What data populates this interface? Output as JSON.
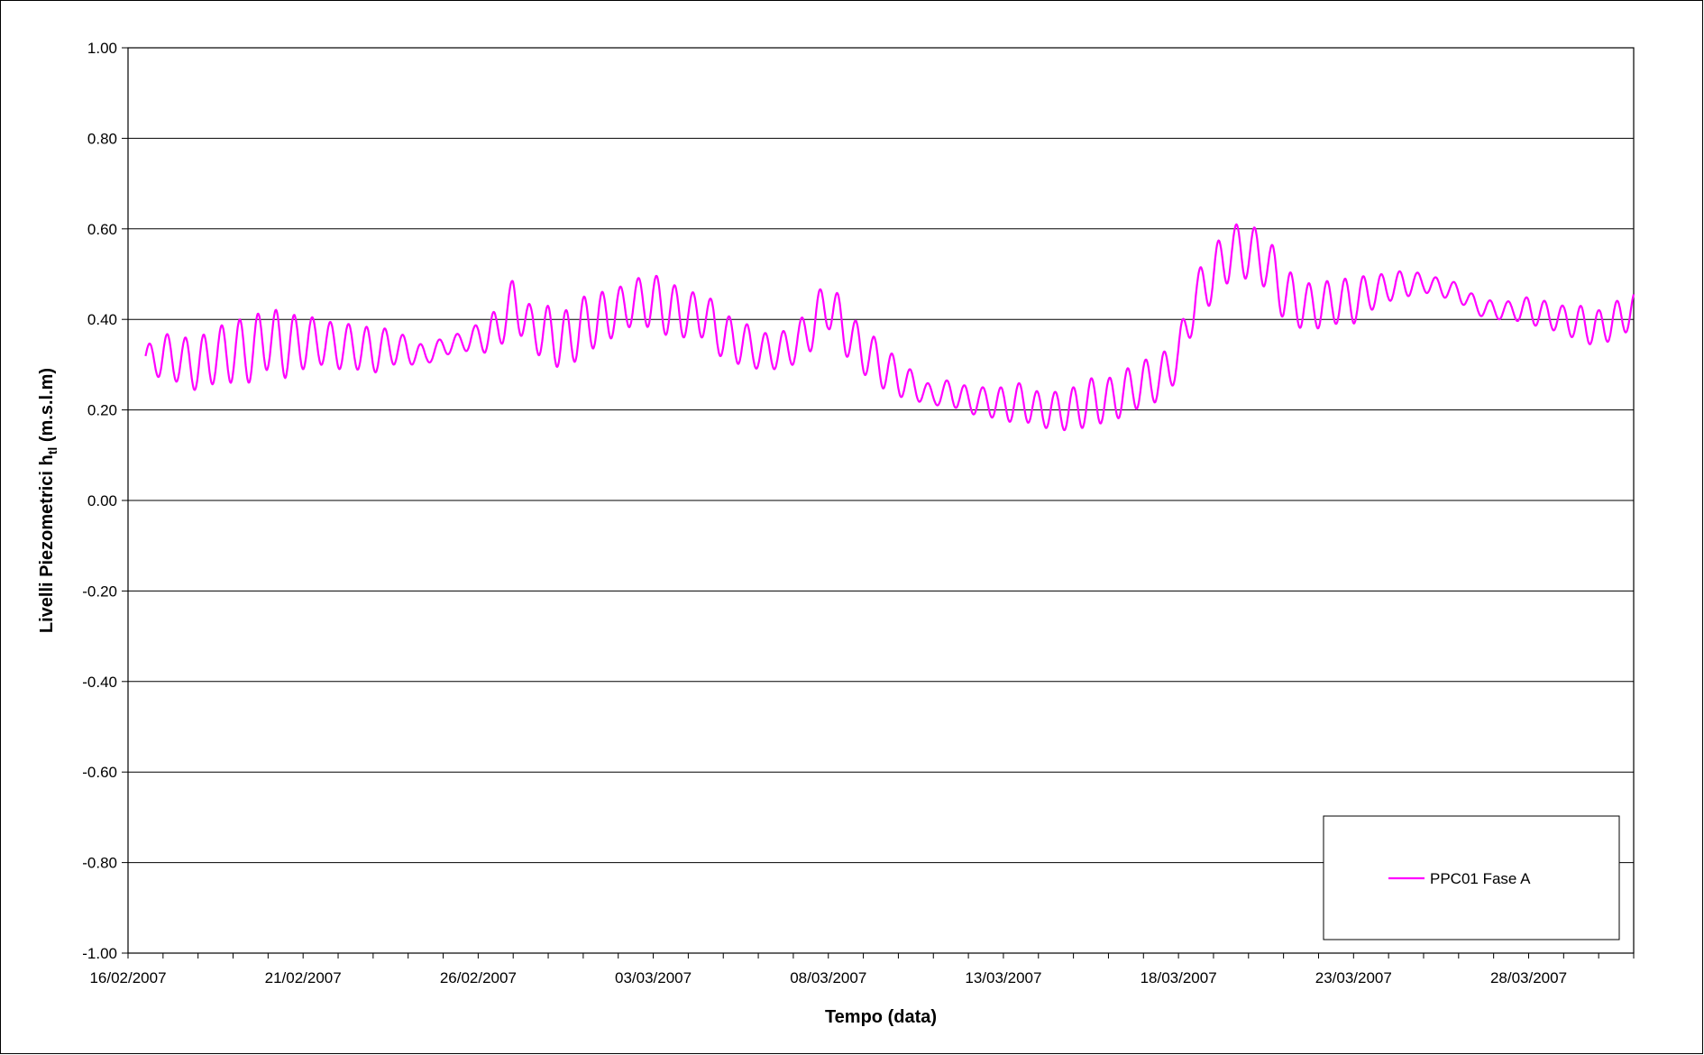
{
  "chart_data": {
    "type": "line",
    "title": "",
    "xlabel": "Tempo (data)",
    "ylabel_main": "Livelli Piezometrici h",
    "ylabel_sub": "tl",
    "ylabel_unit": " (m.s.l.m)",
    "x_tick_labels": [
      "16/02/2007",
      "21/02/2007",
      "26/02/2007",
      "03/03/2007",
      "08/03/2007",
      "13/03/2007",
      "18/03/2007",
      "23/03/2007",
      "28/03/2007"
    ],
    "x_range": [
      "16/02/2007",
      "31/03/2007"
    ],
    "y_tick_labels": [
      "1.00",
      "0.80",
      "0.60",
      "0.40",
      "0.20",
      "0.00",
      "-0.20",
      "-0.40",
      "-0.60",
      "-0.80",
      "-1.00"
    ],
    "ylim": [
      -1.0,
      1.0
    ],
    "grid": "horizontal",
    "legend_position": "bottom-right",
    "series": [
      {
        "name": "PPC01 Fase A",
        "color": "#ff00ff",
        "x": [
          "16/02/2007 12:00",
          "17/02/2007 00:00",
          "17/02/2007 12:00",
          "18/02/2007 00:00",
          "18/02/2007 12:00",
          "19/02/2007 00:00",
          "19/02/2007 12:00",
          "20/02/2007 00:00",
          "20/02/2007 12:00",
          "21/02/2007 00:00",
          "21/02/2007 12:00",
          "22/02/2007 00:00",
          "22/02/2007 12:00",
          "23/02/2007 00:00",
          "23/02/2007 12:00",
          "24/02/2007 00:00",
          "24/02/2007 12:00",
          "25/02/2007 00:00",
          "25/02/2007 12:00",
          "26/02/2007 00:00",
          "26/02/2007 12:00",
          "27/02/2007 00:00",
          "27/02/2007 12:00",
          "28/02/2007 00:00",
          "28/02/2007 12:00",
          "01/03/2007 00:00",
          "01/03/2007 12:00",
          "02/03/2007 00:00",
          "02/03/2007 12:00",
          "03/03/2007 00:00",
          "03/03/2007 12:00",
          "04/03/2007 00:00",
          "04/03/2007 12:00",
          "05/03/2007 00:00",
          "05/03/2007 12:00",
          "06/03/2007 00:00",
          "06/03/2007 12:00",
          "07/03/2007 00:00",
          "07/03/2007 12:00",
          "08/03/2007 00:00",
          "08/03/2007 12:00",
          "09/03/2007 00:00",
          "09/03/2007 12:00",
          "10/03/2007 00:00",
          "10/03/2007 12:00",
          "11/03/2007 00:00",
          "11/03/2007 12:00",
          "12/03/2007 00:00",
          "12/03/2007 12:00",
          "13/03/2007 00:00",
          "13/03/2007 12:00",
          "14/03/2007 00:00",
          "14/03/2007 12:00",
          "15/03/2007 00:00",
          "15/03/2007 12:00",
          "16/03/2007 00:00",
          "16/03/2007 12:00",
          "17/03/2007 00:00",
          "17/03/2007 12:00",
          "18/03/2007 00:00",
          "18/03/2007 12:00",
          "19/03/2007 00:00",
          "19/03/2007 12:00",
          "20/03/2007 00:00",
          "20/03/2007 12:00",
          "21/03/2007 00:00",
          "21/03/2007 12:00",
          "22/03/2007 00:00",
          "22/03/2007 12:00",
          "23/03/2007 00:00",
          "23/03/2007 12:00",
          "24/03/2007 00:00",
          "24/03/2007 12:00",
          "25/03/2007 00:00",
          "25/03/2007 12:00",
          "26/03/2007 00:00",
          "26/03/2007 12:00",
          "27/03/2007 00:00",
          "27/03/2007 12:00",
          "28/03/2007 00:00",
          "28/03/2007 12:00",
          "29/03/2007 00:00",
          "29/03/2007 12:00",
          "30/03/2007 00:00",
          "30/03/2007 12:00",
          "31/03/2007 00:00"
        ],
        "y": [
          0.31,
          0.32,
          0.31,
          0.3,
          0.32,
          0.33,
          0.33,
          0.36,
          0.34,
          0.35,
          0.35,
          0.34,
          0.34,
          0.33,
          0.34,
          0.33,
          0.32,
          0.34,
          0.35,
          0.36,
          0.37,
          0.44,
          0.38,
          0.37,
          0.35,
          0.39,
          0.4,
          0.42,
          0.44,
          0.44,
          0.42,
          0.41,
          0.41,
          0.36,
          0.35,
          0.33,
          0.33,
          0.34,
          0.38,
          0.44,
          0.37,
          0.33,
          0.3,
          0.27,
          0.25,
          0.23,
          0.24,
          0.22,
          0.22,
          0.21,
          0.22,
          0.2,
          0.2,
          0.2,
          0.22,
          0.22,
          0.24,
          0.26,
          0.27,
          0.32,
          0.45,
          0.5,
          0.55,
          0.55,
          0.53,
          0.46,
          0.43,
          0.43,
          0.44,
          0.44,
          0.46,
          0.47,
          0.48,
          0.48,
          0.47,
          0.46,
          0.43,
          0.42,
          0.42,
          0.42,
          0.41,
          0.4,
          0.39,
          0.38,
          0.4,
          0.42
        ],
        "oscillation": [
          0.03,
          0.05,
          0.05,
          0.06,
          0.06,
          0.07,
          0.07,
          0.07,
          0.07,
          0.06,
          0.05,
          0.05,
          0.05,
          0.05,
          0.04,
          0.03,
          0.02,
          0.02,
          0.02,
          0.03,
          0.05,
          0.05,
          0.05,
          0.06,
          0.07,
          0.06,
          0.06,
          0.05,
          0.05,
          0.06,
          0.06,
          0.05,
          0.05,
          0.05,
          0.05,
          0.04,
          0.04,
          0.04,
          0.05,
          0.06,
          0.05,
          0.05,
          0.05,
          0.04,
          0.03,
          0.02,
          0.03,
          0.03,
          0.03,
          0.04,
          0.04,
          0.04,
          0.04,
          0.05,
          0.05,
          0.05,
          0.05,
          0.05,
          0.05,
          0.05,
          0.05,
          0.06,
          0.06,
          0.06,
          0.06,
          0.06,
          0.05,
          0.05,
          0.05,
          0.05,
          0.04,
          0.03,
          0.03,
          0.02,
          0.02,
          0.02,
          0.02,
          0.02,
          0.02,
          0.03,
          0.03,
          0.03,
          0.04,
          0.04,
          0.04,
          0.04
        ]
      }
    ]
  }
}
